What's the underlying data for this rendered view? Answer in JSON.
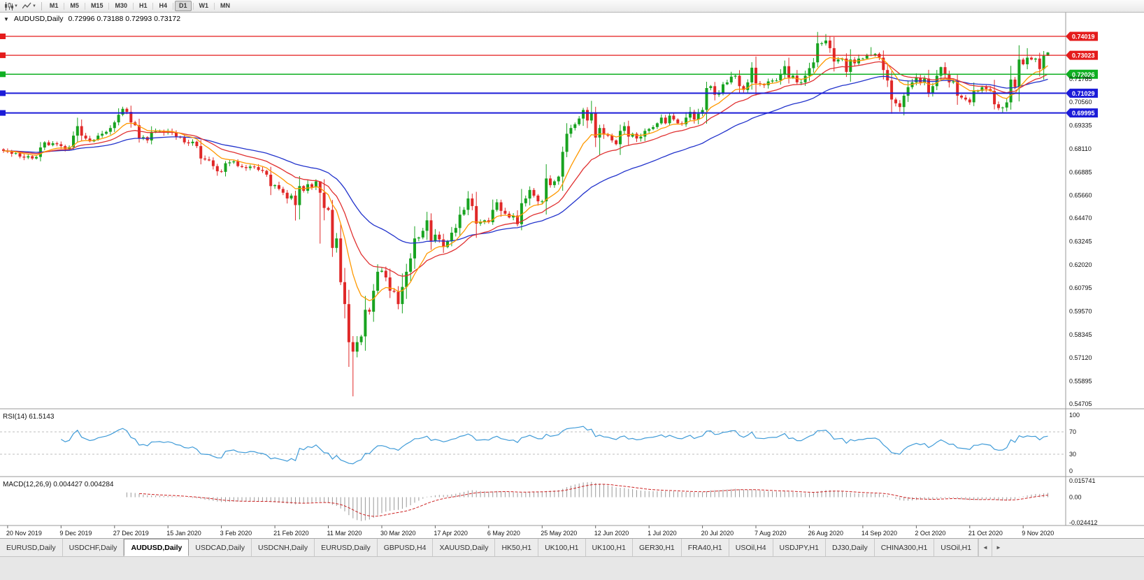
{
  "icons": {
    "title_marker": "▼",
    "dropdown_caret": "▼",
    "scroll_left": "◄",
    "scroll_right": "►"
  },
  "toolbar": {
    "timeframes": [
      "M1",
      "M5",
      "M15",
      "M30",
      "H1",
      "H4",
      "D1",
      "W1",
      "MN"
    ],
    "active": "D1"
  },
  "chart": {
    "title": "AUDUSD,Daily",
    "ohlc": "0.72996 0.73188 0.72993 0.73172",
    "open": "0.72996",
    "high": "0.73188",
    "low": "0.72993",
    "close": "0.73172"
  },
  "price_axis": {
    "plain_labels": [
      "0.71785",
      "0.70560",
      "0.69335",
      "0.68110",
      "0.66885",
      "0.65660",
      "0.64470",
      "0.63245",
      "0.62020",
      "0.60795",
      "0.59570",
      "0.58345",
      "0.57120",
      "0.55895",
      "0.54705"
    ],
    "tagged": [
      {
        "value": "0.74019",
        "color": "#e41b1b"
      },
      {
        "value": "0.73023",
        "color": "#e41b1b"
      },
      {
        "value": "0.72026",
        "color": "#0faf22"
      },
      {
        "value": "0.71029",
        "color": "#1c1cd8"
      },
      {
        "value": "0.69995",
        "color": "#1c1cd8"
      }
    ]
  },
  "hlines": [
    {
      "price": 0.74019,
      "color": "#e41b1b",
      "width": 1.2
    },
    {
      "price": 0.73023,
      "color": "#e41b1b",
      "width": 1.2
    },
    {
      "price": 0.72026,
      "color": "#0faf22",
      "width": 1.5
    },
    {
      "price": 0.71029,
      "color": "#1c1cd8",
      "width": 2
    },
    {
      "price": 0.69995,
      "color": "#1c1cd8",
      "width": 2
    }
  ],
  "dates": [
    "20 Nov 2019",
    "9 Dec 2019",
    "27 Dec 2019",
    "15 Jan 2020",
    "3 Feb 2020",
    "21 Feb 2020",
    "11 Mar 2020",
    "30 Mar 2020",
    "17 Apr 2020",
    "6 May 2020",
    "25 May 2020",
    "12 Jun 2020",
    "1 Jul 2020",
    "20 Jul 2020",
    "7 Aug 2020",
    "26 Aug 2020",
    "14 Sep 2020",
    "2 Oct 2020",
    "21 Oct 2020",
    "9 Nov 2020"
  ],
  "rsi": {
    "label": "RSI(14) 61.5143",
    "period": 14,
    "current": 61.5143,
    "levels": [
      "100",
      "70",
      "30",
      "0"
    ],
    "dashed_levels": [
      70,
      30
    ]
  },
  "macd": {
    "label": "MACD(12,26,9) 0.004427 0.004284",
    "fast": 12,
    "slow": 26,
    "signal": 9,
    "current_main": 0.004427,
    "current_signal": 0.004284,
    "axis": [
      "0.015741",
      "0.00",
      "-0.024412"
    ]
  },
  "tabbar": {
    "items": [
      "EURUSD,Daily",
      "USDCHF,Daily",
      "AUDUSD,Daily",
      "USDCAD,Daily",
      "USDCNH,Daily",
      "EURUSD,Daily",
      "GBPUSD,H4",
      "XAUUSD,Daily",
      "HK50,H1",
      "UK100,H1",
      "UK100,H1",
      "GER30,H1",
      "FRA40,H1",
      "USOil,H4",
      "USDJPY,H1",
      "DJ30,Daily",
      "CHINA300,H1",
      "USOil,H1"
    ],
    "active_index": 2
  },
  "chart_data": {
    "type": "candlestick",
    "symbol": "AUDUSD",
    "timeframe": "Daily",
    "ylim": [
      0.5447,
      0.7476
    ],
    "horizontal_levels": [
      0.74019,
      0.73023,
      0.72026,
      0.71029,
      0.69995
    ],
    "label_indices": [
      1,
      14,
      27,
      40,
      53,
      66,
      79,
      92,
      105,
      118,
      131,
      144,
      157,
      170,
      183,
      196,
      209,
      222,
      235,
      248
    ],
    "closes": [
      0.68,
      0.6795,
      0.6785,
      0.6788,
      0.677,
      0.6765,
      0.6772,
      0.676,
      0.6768,
      0.6818,
      0.6845,
      0.683,
      0.684,
      0.6835,
      0.6825,
      0.681,
      0.682,
      0.688,
      0.693,
      0.688,
      0.6865,
      0.685,
      0.6858,
      0.688,
      0.689,
      0.69,
      0.692,
      0.695,
      0.699,
      0.7021,
      0.7005,
      0.695,
      0.6935,
      0.6865,
      0.6872,
      0.6855,
      0.69,
      0.6902,
      0.6905,
      0.6895,
      0.6903,
      0.6895,
      0.6875,
      0.687,
      0.6845,
      0.684,
      0.6848,
      0.6825,
      0.676,
      0.6755,
      0.675,
      0.672,
      0.6693,
      0.669,
      0.6735,
      0.674,
      0.6745,
      0.672,
      0.6715,
      0.671,
      0.6718,
      0.6715,
      0.67,
      0.6695,
      0.6675,
      0.6615,
      0.662,
      0.66,
      0.658,
      0.655,
      0.6565,
      0.6515,
      0.6615,
      0.659,
      0.6625,
      0.661,
      0.664,
      0.658,
      0.65,
      0.649,
      0.629,
      0.634,
      0.611,
      0.5995,
      0.5795,
      0.5745,
      0.5795,
      0.5825,
      0.5965,
      0.5955,
      0.6065,
      0.6165,
      0.617,
      0.6135,
      0.6065,
      0.606,
      0.5995,
      0.6085,
      0.6165,
      0.6235,
      0.634,
      0.6345,
      0.638,
      0.6435,
      0.6325,
      0.636,
      0.6335,
      0.6295,
      0.6325,
      0.637,
      0.6395,
      0.6465,
      0.649,
      0.655,
      0.651,
      0.6418,
      0.6425,
      0.6435,
      0.6425,
      0.649,
      0.653,
      0.6485,
      0.647,
      0.645,
      0.646,
      0.6415,
      0.6525,
      0.655,
      0.6595,
      0.6565,
      0.6535,
      0.6535,
      0.6655,
      0.662,
      0.664,
      0.6665,
      0.6795,
      0.689,
      0.692,
      0.694,
      0.697,
      0.7015,
      0.696,
      0.7,
      0.687,
      0.692,
      0.6885,
      0.688,
      0.6855,
      0.6835,
      0.6905,
      0.693,
      0.6875,
      0.689,
      0.6865,
      0.6875,
      0.6905,
      0.6915,
      0.6925,
      0.6945,
      0.6975,
      0.6945,
      0.6985,
      0.6965,
      0.6945,
      0.694,
      0.6975,
      0.7005,
      0.6965,
      0.6995,
      0.7015,
      0.713,
      0.714,
      0.7095,
      0.7105,
      0.715,
      0.716,
      0.719,
      0.7195,
      0.714,
      0.712,
      0.716,
      0.7237,
      0.7155,
      0.715,
      0.7145,
      0.7165,
      0.717,
      0.717,
      0.7205,
      0.7245,
      0.7185,
      0.7195,
      0.716,
      0.716,
      0.7195,
      0.7235,
      0.7265,
      0.7365,
      0.7365,
      0.738,
      0.734,
      0.727,
      0.728,
      0.7285,
      0.7215,
      0.728,
      0.726,
      0.7285,
      0.7285,
      0.7305,
      0.7305,
      0.731,
      0.729,
      0.7225,
      0.717,
      0.707,
      0.705,
      0.703,
      0.709,
      0.7135,
      0.716,
      0.7185,
      0.716,
      0.718,
      0.7105,
      0.714,
      0.7195,
      0.724,
      0.7205,
      0.716,
      0.7165,
      0.709,
      0.708,
      0.707,
      0.7055,
      0.7115,
      0.7115,
      0.7135,
      0.7125,
      0.7115,
      0.7045,
      0.7025,
      0.7028,
      0.7055,
      0.7175,
      0.7135,
      0.728,
      0.7255,
      0.729,
      0.728,
      0.7285,
      0.723,
      0.73,
      0.73172
    ],
    "wick_overrides": {
      "29": {
        "h": 0.7032
      },
      "71": {
        "l": 0.6434
      },
      "77": {
        "h": 0.6625,
        "l": 0.6313
      },
      "82": {
        "l": 0.6095
      },
      "84": {
        "l": 0.5665
      },
      "85": {
        "l": 0.551
      },
      "143": {
        "h": 0.7063
      },
      "145": {
        "l": 0.6777
      },
      "190": {
        "h": 0.7275
      },
      "200": {
        "h": 0.7414
      },
      "211": {
        "h": 0.7345
      },
      "218": {
        "l": 0.7006
      },
      "228": {
        "h": 0.7243
      },
      "243": {
        "l": 0.7002
      },
      "249": {
        "h": 0.734
      },
      "254": {
        "h": 0.73188,
        "l": 0.72993
      }
    },
    "last_candle": {
      "open": 0.72996,
      "high": 0.73188,
      "low": 0.72993,
      "close": 0.73172
    },
    "moving_averages": [
      {
        "period": 45,
        "color": "#2233cc"
      },
      {
        "period": 21,
        "color": "#e03030"
      },
      {
        "period": 10,
        "color": "#ff9900"
      }
    ],
    "up_color": "#18a320",
    "down_color": "#e02828",
    "rsi_color": "#3f9bd8",
    "macd_hist_color": "#999999",
    "macd_signal_color": "#cc2222"
  }
}
